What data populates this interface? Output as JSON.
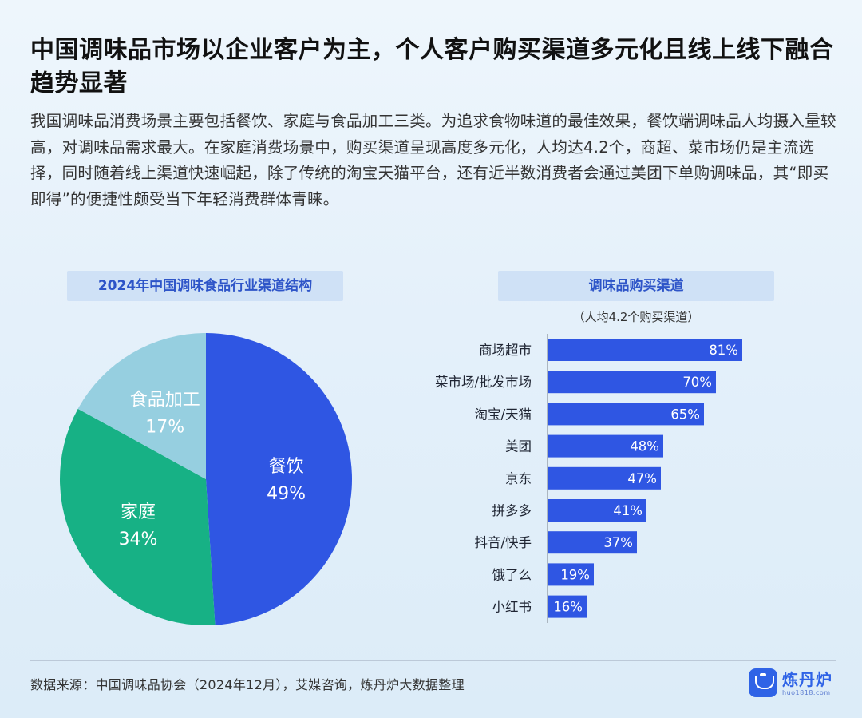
{
  "header": {
    "title": "中国调味品市场以企业客户为主，个人客户购买渠道多元化且线上线下融合趋势显著",
    "intro": "我国调味品消费场景主要包括餐饮、家庭与食品加工三类。为追求食物味道的最佳效果，餐饮端调味品人均摄入量较高，对调味品需求最大。在家庭消费场景中，购买渠道呈现高度多元化，人均达4.2个，商超、菜市场仍是主流选择，同时随着线上渠道快速崛起，除了传统的淘宝天猫平台，还有近半数消费者会通过美团下单购调味品，其“即买即得”的便捷性颇受当下年轻消费群体青睐。"
  },
  "chart_data": [
    {
      "type": "pie",
      "title": "2024年中国调味食品行业渠道结构",
      "categories": [
        "餐饮",
        "家庭",
        "食品加工"
      ],
      "values": [
        49,
        34,
        17
      ],
      "value_labels": [
        "49%",
        "34%",
        "17%"
      ],
      "colors": [
        "#2f56e3",
        "#17b185",
        "#96cfe0"
      ],
      "legend": "none"
    },
    {
      "type": "bar",
      "orientation": "horizontal",
      "title": "调味品购买渠道",
      "subtitle": "（人均4.2个购买渠道）",
      "categories": [
        "商场超市",
        "菜市场/批发市场",
        "淘宝/天猫",
        "美团",
        "京东",
        "拼多多",
        "抖音/快手",
        "饿了么",
        "小红书"
      ],
      "values": [
        81,
        70,
        65,
        48,
        47,
        41,
        37,
        19,
        16
      ],
      "value_labels": [
        "81%",
        "70%",
        "65%",
        "48%",
        "47%",
        "41%",
        "37%",
        "19%",
        "16%"
      ],
      "xlim": [
        0,
        100
      ],
      "color": "#2f56e3",
      "grid": false,
      "legend": "none"
    }
  ],
  "footer": {
    "source": "数据来源：中国调味品协会（2024年12月），艾媒咨询，炼丹炉大数据整理",
    "logo_text": "炼丹炉",
    "logo_url": "huo1818.com"
  }
}
